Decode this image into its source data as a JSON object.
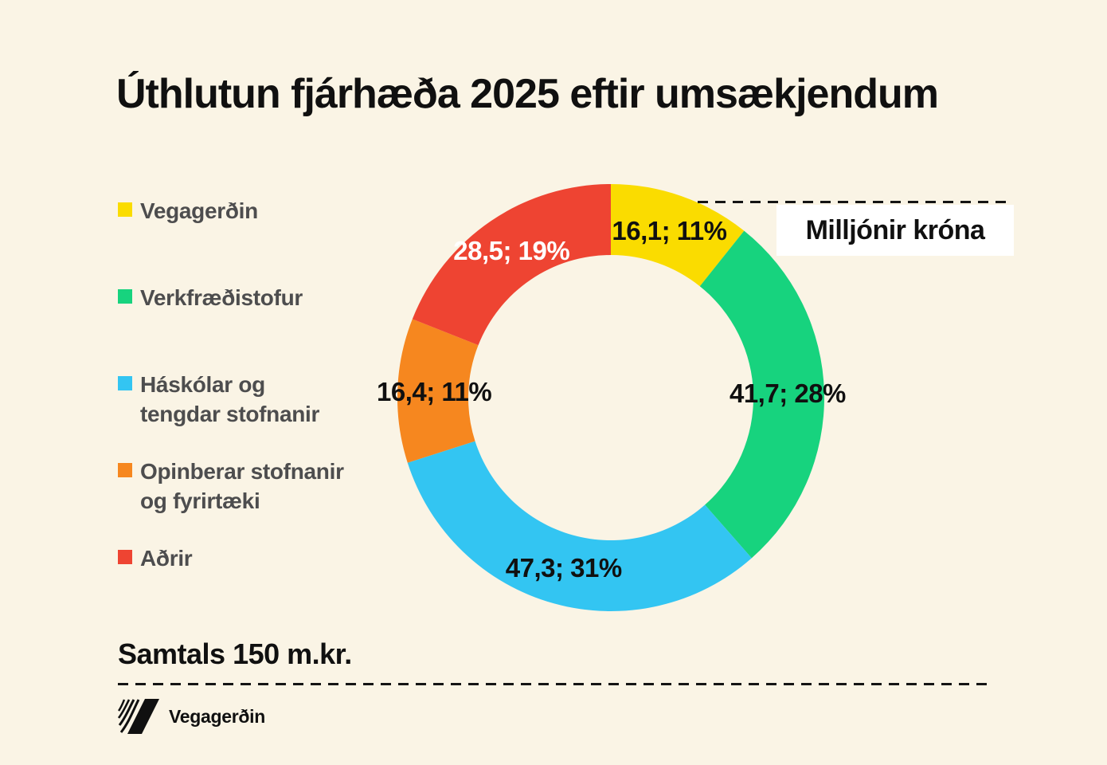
{
  "page": {
    "background": "#FAF4E5",
    "title": "Úthlutun fjárhæða 2025 eftir umsækjendum",
    "unit_box_label": "Milljónir króna",
    "total_label": "Samtals 150 m.kr.",
    "footer_brand": "Vegagerðin"
  },
  "chart_data": {
    "type": "pie",
    "variant": "donut",
    "title": "Úthlutun fjárhæða 2025 eftir umsækjendum",
    "unit": "Milljónir króna",
    "total": 150,
    "total_label": "Samtals 150 m.kr.",
    "legend_position": "left",
    "start_angle_deg": 0,
    "direction": "clockwise",
    "slices": [
      {
        "legend_label": "Vegagerðin",
        "value": 16.1,
        "percent": 11,
        "data_label": "16,1; 11%",
        "color": "#FADC00",
        "label_color": "#101010"
      },
      {
        "legend_label": "Verkfræðistofur",
        "value": 41.7,
        "percent": 28,
        "data_label": "41,7; 28%",
        "color": "#17D37E",
        "label_color": "#101010"
      },
      {
        "legend_label": "Háskólar og\ntengdar stofnanir",
        "value": 47.3,
        "percent": 31,
        "data_label": "47,3; 31%",
        "color": "#33C5F2",
        "label_color": "#101010"
      },
      {
        "legend_label": "Opinberar stofnanir\nog fyrirtæki",
        "value": 16.4,
        "percent": 11,
        "data_label": "16,4; 11%",
        "color": "#F6871F",
        "label_color": "#101010"
      },
      {
        "legend_label": "Aðrir",
        "value": 28.5,
        "percent": 19,
        "data_label": "28,5; 19%",
        "color": "#EE4432",
        "label_color": "#FFFFFF"
      }
    ]
  }
}
